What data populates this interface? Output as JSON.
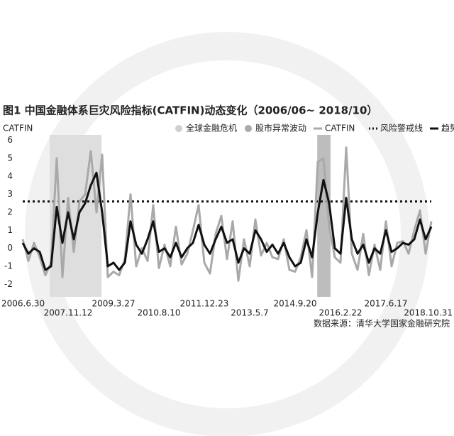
{
  "chart_data": {
    "type": "line",
    "title": "图1 中国金融体系巨灾风险指标(CATFIN)动态变化（2006/06~ 2018/10）",
    "y_label": "CATFIN",
    "source": "数据来源：清华大学国家金融研究院",
    "categories": [
      "2006.6.30",
      null,
      null,
      null,
      null,
      null,
      null,
      null,
      "2007.11.12",
      null,
      null,
      null,
      null,
      null,
      null,
      null,
      "2009.3.27",
      null,
      null,
      null,
      null,
      null,
      null,
      null,
      "2010.8.10",
      null,
      null,
      null,
      null,
      null,
      null,
      null,
      "2011.12.23",
      null,
      null,
      null,
      null,
      null,
      null,
      null,
      "2013.5.7",
      null,
      null,
      null,
      null,
      null,
      null,
      null,
      "2014.9.20",
      null,
      null,
      null,
      null,
      null,
      null,
      null,
      "2016.2.22",
      null,
      null,
      null,
      null,
      null,
      null,
      null,
      "2017.6.17",
      null,
      null,
      null,
      null,
      null,
      null,
      null,
      "2018.10.31"
    ],
    "bands": [
      {
        "name": "全球金融危机",
        "color": "#dedede",
        "start": 4.75,
        "end": 13.9
      },
      {
        "name": "股市异常波动",
        "color": "#bdbdbd",
        "start": 51.9,
        "end": 54.25
      }
    ],
    "series": [
      {
        "name": "CATFIN",
        "color": "#a9a9a9",
        "width": 3,
        "values": [
          0.5,
          -0.7,
          0.3,
          -0.5,
          -1.5,
          -0.8,
          5.0,
          -1.6,
          2.8,
          -0.2,
          2.6,
          3.0,
          5.4,
          2.0,
          5.2,
          -1.6,
          -1.3,
          -1.5,
          -0.6,
          3.0,
          -1.0,
          0.0,
          -0.7,
          2.4,
          -1.1,
          0.2,
          -1.0,
          1.2,
          -0.9,
          -0.3,
          1.0,
          2.4,
          -0.8,
          -1.4,
          0.8,
          1.8,
          -0.6,
          1.5,
          -1.8,
          0.5,
          -1.0,
          1.6,
          -0.4,
          0.3,
          -0.5,
          -0.6,
          0.5,
          -1.2,
          -1.3,
          -0.5,
          1.0,
          -1.6,
          4.8,
          5.0,
          1.2,
          -0.5,
          -0.8,
          5.6,
          -0.3,
          -1.2,
          0.8,
          -1.5,
          0.2,
          -1.2,
          1.5,
          -1.0,
          0.3,
          0.4,
          -0.3,
          1.0,
          2.1,
          -0.3,
          1.5
        ]
      },
      {
        "name": "趋势值",
        "color": "#111111",
        "width": 3,
        "values": [
          0.3,
          -0.3,
          0,
          -0.2,
          -1.2,
          -1.0,
          2.3,
          0.3,
          2.0,
          0.5,
          2.0,
          2.5,
          3.5,
          4.2,
          2.0,
          -1.0,
          -0.8,
          -1.2,
          -0.8,
          1.5,
          0.2,
          -0.3,
          0.5,
          1.5,
          -0.2,
          0,
          -0.5,
          0.3,
          -0.5,
          0,
          0.3,
          1.3,
          0.2,
          -0.3,
          0.5,
          1.2,
          0.3,
          0.5,
          -0.8,
          0,
          -0.3,
          1.0,
          0.5,
          -0.2,
          0.2,
          -0.3,
          0.3,
          -0.5,
          -1.0,
          -0.8,
          0.5,
          -0.5,
          2.0,
          3.8,
          2.5,
          0,
          -0.3,
          2.8,
          0.5,
          -0.3,
          0.2,
          -0.8,
          0,
          -0.3,
          1.0,
          -0.2,
          0,
          0.3,
          0.2,
          0.5,
          1.6,
          0.5,
          1.2
        ]
      }
    ],
    "threshold": {
      "name": "风险警戒线",
      "value": 2.6,
      "color": "#111111"
    },
    "ylim": [
      -2.5,
      6.3
    ],
    "yticks": [
      -2,
      -1,
      0,
      1,
      2,
      3,
      4,
      5,
      6
    ],
    "grid": false
  }
}
